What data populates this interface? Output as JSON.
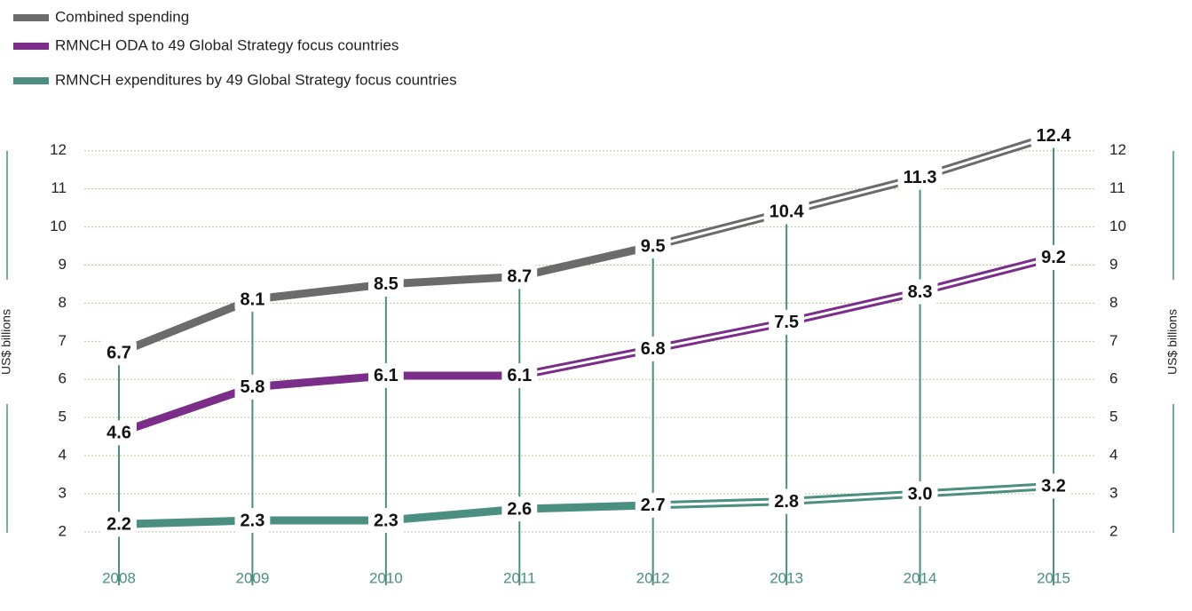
{
  "chart_data": {
    "type": "line",
    "categories": [
      "2008",
      "2009",
      "2010",
      "2011",
      "2012",
      "2013",
      "2014",
      "2015"
    ],
    "series": [
      {
        "name": "Combined spending",
        "color": "#6b6b6b",
        "values": [
          6.7,
          8.1,
          8.5,
          8.7,
          9.5,
          10.4,
          11.3,
          12.4
        ],
        "double_line_from": 4
      },
      {
        "name": "RMNCH ODA to 49 Global Strategy focus countries",
        "color": "#7a2d89",
        "values": [
          4.6,
          5.8,
          6.1,
          6.1,
          6.8,
          7.5,
          8.3,
          9.2
        ],
        "double_line_from": 3
      },
      {
        "name": "RMNCH expenditures by 49 Global Strategy focus countries",
        "color": "#4a8f7f",
        "values": [
          2.2,
          2.3,
          2.3,
          2.6,
          2.7,
          2.8,
          3.0,
          3.2
        ],
        "value_labels": [
          "2.2",
          "2.3",
          "2.3",
          "2.6",
          "2.7",
          "2.8",
          "3.0",
          "3.2"
        ],
        "double_line_from": 4
      }
    ],
    "ylabel": "US$ billions",
    "ylim": [
      0.6,
      12.6
    ],
    "yticks": [
      2,
      3,
      4,
      5,
      6,
      7,
      8,
      9,
      10,
      11,
      12
    ],
    "grid": true,
    "category_color": "#4a8f7f",
    "legend": "top-left"
  }
}
